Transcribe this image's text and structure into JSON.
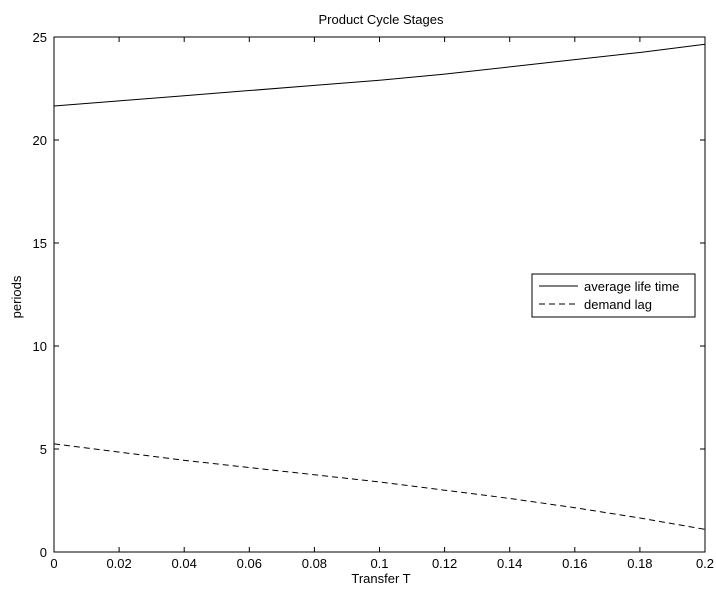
{
  "chart_data": {
    "type": "line",
    "title": "Product Cycle Stages",
    "xlabel": "Transfer T",
    "ylabel": "periods",
    "xlim": [
      0,
      0.2
    ],
    "ylim": [
      0,
      25
    ],
    "xticks": [
      "0",
      "0.02",
      "0.04",
      "0.06",
      "0.08",
      "0.1",
      "0.12",
      "0.14",
      "0.16",
      "0.18",
      "0.2"
    ],
    "yticks": [
      "0",
      "5",
      "10",
      "15",
      "20",
      "25"
    ],
    "grid": false,
    "legend_position": "right",
    "series": [
      {
        "name": "average life time",
        "style": "solid",
        "color": "#000000",
        "x": [
          0,
          0.02,
          0.04,
          0.06,
          0.08,
          0.1,
          0.12,
          0.14,
          0.16,
          0.18,
          0.2
        ],
        "y": [
          21.65,
          21.9,
          22.15,
          22.4,
          22.65,
          22.9,
          23.2,
          23.55,
          23.9,
          24.25,
          24.65
        ]
      },
      {
        "name": "demand lag",
        "style": "dashed",
        "color": "#000000",
        "x": [
          0,
          0.02,
          0.04,
          0.06,
          0.08,
          0.1,
          0.12,
          0.14,
          0.16,
          0.18,
          0.2
        ],
        "y": [
          5.25,
          4.85,
          4.45,
          4.1,
          3.75,
          3.4,
          3.0,
          2.6,
          2.15,
          1.65,
          1.1
        ]
      }
    ]
  }
}
